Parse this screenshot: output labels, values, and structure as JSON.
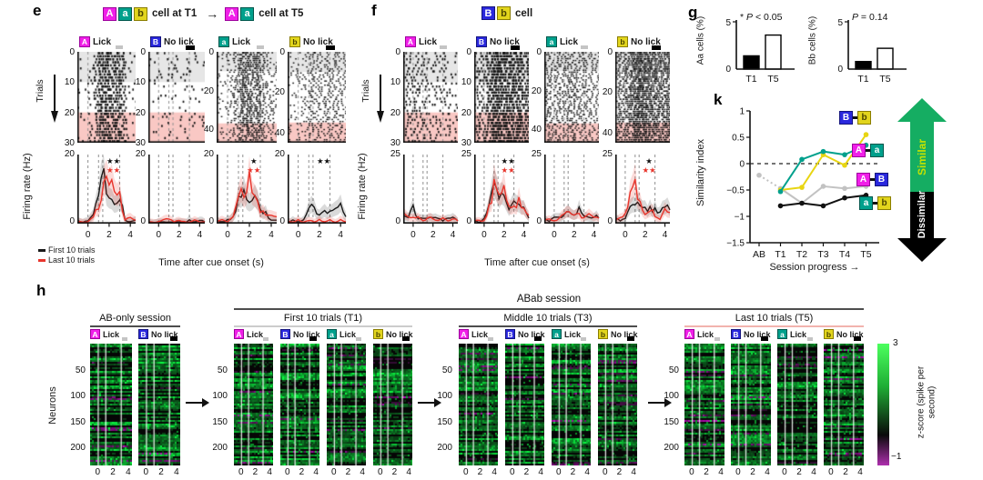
{
  "cue_colors": {
    "A": {
      "bg": "#f020e8",
      "fg": "#ffffff",
      "bd": "#9c009c"
    },
    "B": {
      "bg": "#2a28dd",
      "fg": "#ffffff",
      "bd": "#14147e"
    },
    "a": {
      "bg": "#00a08c",
      "fg": "#ffffff",
      "bd": "#00564b"
    },
    "b": {
      "bg": "#e2d51d",
      "fg": "#4a4400",
      "bd": "#8a7d00"
    }
  },
  "panel_e": {
    "label": "e",
    "title_left_tokens": [
      "A",
      "a",
      "b"
    ],
    "title_left_text": "cell at T1",
    "title_arrow": "→",
    "title_right_tokens": [
      "A",
      "a"
    ],
    "title_right_text": "cell at T5",
    "trials_ylabel": "Trials",
    "rate_ylabel": "Firing rate (Hz)",
    "rate_ymax": 20,
    "rate_ymax_label": "20",
    "rate_ymin_label": "0",
    "band_first": "#e6e6e6",
    "band_last": "#f9c8c4",
    "xticks": [
      "0",
      "2",
      "4"
    ],
    "xlabel": "Time after cue onset (s)",
    "legend": [
      {
        "label": "First 10 trials",
        "color": "#1a1a1a"
      },
      {
        "label": "Last 10 trials",
        "color": "#e8352c"
      }
    ],
    "columns": [
      {
        "cue": "A",
        "type": "Lick",
        "yticks": [
          "0",
          "10",
          "20",
          "30"
        ],
        "rows": 30,
        "stars_black": "★★",
        "stars_red": "★★",
        "raster_profile": [
          0.3,
          0.2,
          0.5,
          1.5,
          3.5,
          4,
          2.5,
          3,
          2,
          0.5,
          0.3
        ],
        "black": [
          1,
          0.5,
          1,
          3,
          9,
          13,
          6,
          7,
          8,
          1,
          0.5,
          1
        ],
        "red": [
          0.5,
          0.5,
          0.5,
          2,
          5,
          10,
          14,
          9,
          8,
          1,
          2,
          1
        ]
      },
      {
        "cue": "B",
        "type": "No lick",
        "yticks": [
          "0",
          "10",
          "20",
          "30"
        ],
        "rows": 30,
        "stars_black": "",
        "stars_red": "",
        "raster_profile": [
          0.3,
          0.3,
          0.3,
          0.3,
          0.3,
          0.3,
          0.3,
          0.3,
          0.3,
          0.3,
          0.3
        ],
        "black": [
          0.5,
          0.3,
          0.5,
          0.5,
          0.5,
          0.3,
          0.5,
          0.5,
          1,
          0.5,
          1,
          0.5
        ],
        "red": [
          0.5,
          0.5,
          0.5,
          1,
          1.5,
          0.5,
          1,
          0.5,
          0.5,
          1,
          0.5,
          0.5
        ]
      },
      {
        "cue": "a",
        "type": "Lick",
        "yticks": [
          "0",
          "20",
          "40"
        ],
        "rows": 47,
        "stars_black": "★",
        "stars_red": "★★",
        "raster_profile": [
          0.5,
          0.4,
          0.8,
          1.5,
          3,
          3,
          2.5,
          3,
          1.5,
          1,
          0.8
        ],
        "black": [
          1,
          0.5,
          1,
          2,
          7,
          8,
          5,
          7,
          4,
          3,
          1,
          1
        ],
        "red": [
          0.5,
          1,
          0.5,
          2,
          10,
          9,
          13,
          7,
          4,
          2,
          3,
          2
        ]
      },
      {
        "cue": "b",
        "type": "No lick",
        "yticks": [
          "0",
          "20",
          "40"
        ],
        "rows": 45,
        "stars_black": "★★",
        "stars_red": "",
        "raster_profile": [
          0.5,
          0.5,
          0.5,
          0.8,
          1.5,
          1.2,
          1,
          1.2,
          1,
          1.2,
          1
        ],
        "black": [
          0.5,
          1,
          0.5,
          1,
          4,
          5,
          2,
          4,
          3,
          4,
          5,
          2
        ],
        "red": [
          0.5,
          0.5,
          1,
          0.5,
          1,
          0.5,
          1,
          0.5,
          1,
          0.5,
          1,
          0.5
        ]
      }
    ]
  },
  "panel_f": {
    "label": "f",
    "title_tokens": [
      "B",
      "b"
    ],
    "title_text": "cell",
    "trials_ylabel": "Trials",
    "rate_ylabel": "Firing rate (Hz)",
    "rate_ymax": 25,
    "rate_ymax_label": "25",
    "rate_ymin_label": "0",
    "band_first": "#e6e6e6",
    "band_last": "#f9c8c4",
    "xticks": [
      "0",
      "2",
      "4"
    ],
    "xlabel": "Time after cue onset (s)",
    "columns": [
      {
        "cue": "A",
        "type": "Lick",
        "yticks": [
          "0",
          "10",
          "20",
          "30"
        ],
        "rows": 30,
        "stars_black": "",
        "stars_red": "",
        "raster_profile": [
          1,
          0.8,
          1.2,
          0.8,
          0.8,
          0.8,
          0.8,
          0.6,
          0.8,
          0.6,
          0.6
        ],
        "black": [
          3,
          2,
          6,
          2,
          2,
          2,
          2,
          2,
          1,
          2,
          2,
          1
        ],
        "red": [
          4,
          2,
          3,
          2,
          1,
          2,
          2,
          1,
          2,
          1,
          2,
          1
        ]
      },
      {
        "cue": "B",
        "type": "No lick",
        "yticks": [
          "0",
          "10",
          "20",
          "30"
        ],
        "rows": 30,
        "stars_black": "★★",
        "stars_red": "★★",
        "raster_profile": [
          1.5,
          1.2,
          2,
          3.5,
          4.5,
          4,
          4,
          3.5,
          3.5,
          3,
          3
        ],
        "black": [
          1,
          0.5,
          2,
          8,
          12,
          10,
          11,
          6,
          8,
          6,
          7,
          2
        ],
        "red": [
          1,
          1,
          1,
          6,
          13,
          11,
          12,
          8,
          6,
          8,
          7,
          3
        ]
      },
      {
        "cue": "a",
        "type": "Lick",
        "yticks": [
          "0",
          "20",
          "40"
        ],
        "rows": 47,
        "stars_black": "",
        "stars_red": "",
        "raster_profile": [
          1.5,
          1.2,
          1.5,
          1.2,
          1.5,
          1.8,
          1.5,
          1.2,
          1.2,
          1,
          1
        ],
        "black": [
          2,
          1,
          3,
          2,
          3,
          5,
          4,
          5,
          3,
          2,
          3,
          2
        ],
        "red": [
          1,
          2,
          1,
          2,
          3,
          4,
          3,
          3,
          2,
          3,
          2,
          2
        ]
      },
      {
        "cue": "b",
        "type": "No lick",
        "yticks": [
          "0",
          "20",
          "40"
        ],
        "rows": 45,
        "stars_black": "★",
        "stars_red": "★★",
        "raster_profile": [
          2,
          1.8,
          2.5,
          4,
          5,
          4.5,
          4,
          3.5,
          3,
          3,
          3.5
        ],
        "black": [
          2,
          1,
          2,
          5,
          7,
          6,
          5,
          6,
          5,
          4,
          6,
          5
        ],
        "red": [
          1,
          2,
          3,
          10,
          14,
          8,
          4,
          5,
          3,
          2,
          6,
          4
        ]
      }
    ]
  },
  "panel_g": {
    "label": "g",
    "charts": [
      {
        "ylabel": "Aa cells (%)",
        "ymax_label": "5",
        "ymin_label": "0",
        "ann_prefix": "* ",
        "ann_var": "P",
        "ann_rest": " < 0.05",
        "categories": [
          "T1",
          "T5"
        ],
        "values": [
          1.4,
          3.6
        ],
        "ymax": 5,
        "fills": [
          "#000000",
          "#ffffff"
        ]
      },
      {
        "ylabel": "Bb cells (%)",
        "ymax_label": "5",
        "ymin_label": "0",
        "ann_prefix": "",
        "ann_var": "P",
        "ann_rest": " = 0.14",
        "categories": [
          "T1",
          "T5"
        ],
        "values": [
          0.8,
          2.2
        ],
        "ymax": 5,
        "fills": [
          "#000000",
          "#ffffff"
        ]
      }
    ]
  },
  "panel_k": {
    "label": "k",
    "ylabel": "Similarity index",
    "yticks": [
      "1",
      "0.5",
      "0",
      "−0.5",
      "−1",
      "−1.5"
    ],
    "ytick_vals": [
      1,
      0.5,
      0,
      -0.5,
      -1,
      -1.5
    ],
    "categories": [
      "AB",
      "T1",
      "T2",
      "T3",
      "T4",
      "T5"
    ],
    "xlabel": "Session progress →",
    "series": [
      {
        "name": "A-B",
        "color": "#c2c2c2",
        "values": [
          -0.22,
          -0.47,
          -0.75,
          -0.43,
          -0.47,
          -0.43
        ],
        "dotted_first": true
      },
      {
        "name": "A-a",
        "color": "#00a08c",
        "values": [
          null,
          -0.53,
          0.08,
          0.23,
          0.17,
          0.35
        ]
      },
      {
        "name": "B-b",
        "color": "#e8d512",
        "values": [
          null,
          -0.5,
          -0.45,
          0.17,
          -0.03,
          0.55
        ]
      },
      {
        "name": "a-b",
        "color": "#111111",
        "values": [
          null,
          -0.8,
          -0.75,
          -0.8,
          -0.65,
          -0.6
        ]
      }
    ],
    "legend_pairs": [
      [
        "B",
        "b"
      ],
      [
        "A",
        "a"
      ],
      [
        "A",
        "B"
      ],
      [
        "a",
        "b"
      ]
    ],
    "similar_label": "Similar",
    "dissimilar_label": "Dissimilar",
    "similar_arrow": "#15ad62",
    "similar_text": "#c6e300",
    "dissimilar_arrow": "#000000",
    "dissimilar_text": "#ffffff"
  },
  "panel_h": {
    "label": "h",
    "neurons_ylabel": "Neurons",
    "neuron_ticks": [
      "50",
      "100",
      "150",
      "200"
    ],
    "neuron_rows": 235,
    "xticks": [
      "0",
      "2",
      "4"
    ],
    "abab_title": "ABab session",
    "groups": [
      {
        "title": "AB-only session",
        "underline": "#4d4d4d",
        "maps": [
          {
            "cue": "A",
            "type": "Lick"
          },
          {
            "cue": "B",
            "type": "No lick"
          }
        ]
      },
      {
        "title": "First 10 trials (T1)",
        "underline": "#cccccc",
        "maps": [
          {
            "cue": "A",
            "type": "Lick"
          },
          {
            "cue": "B",
            "type": "No lick"
          },
          {
            "cue": "a",
            "type": "Lick"
          },
          {
            "cue": "b",
            "type": "No lick"
          }
        ]
      },
      {
        "title": "Middle 10 trials (T3)",
        "underline": "#4d4d4d",
        "maps": [
          {
            "cue": "A",
            "type": "Lick"
          },
          {
            "cue": "B",
            "type": "No lick"
          },
          {
            "cue": "a",
            "type": "Lick"
          },
          {
            "cue": "b",
            "type": "No lick"
          }
        ]
      },
      {
        "title": "Last 10 trials (T5)",
        "underline": "#f2b3ae",
        "maps": [
          {
            "cue": "A",
            "type": "Lick"
          },
          {
            "cue": "B",
            "type": "No lick"
          },
          {
            "cue": "a",
            "type": "Lick"
          },
          {
            "cue": "b",
            "type": "No lick"
          }
        ]
      }
    ],
    "colorbar": {
      "max": "3",
      "min": "−1",
      "label": "z-score (spike per second)",
      "top": "#4cff5e",
      "mid": "#0a0a0a",
      "bottom": "#ad2fad"
    }
  },
  "chart_data": [
    {
      "type": "bar",
      "title": "Aa cells (%)",
      "categories": [
        "T1",
        "T5"
      ],
      "values": [
        1.4,
        3.6
      ],
      "ylim": [
        0,
        5
      ],
      "annotation": "* P < 0.05"
    },
    {
      "type": "bar",
      "title": "Bb cells (%)",
      "categories": [
        "T1",
        "T5"
      ],
      "values": [
        0.8,
        2.2
      ],
      "ylim": [
        0,
        5
      ],
      "annotation": "P = 0.14"
    },
    {
      "type": "line",
      "title": "Similarity index vs session progress",
      "x": [
        "AB",
        "T1",
        "T2",
        "T3",
        "T4",
        "T5"
      ],
      "series": [
        {
          "name": "A-B",
          "values": [
            -0.22,
            -0.47,
            -0.75,
            -0.43,
            -0.47,
            -0.43
          ]
        },
        {
          "name": "A-a",
          "values": [
            null,
            -0.53,
            0.08,
            0.23,
            0.17,
            0.35
          ]
        },
        {
          "name": "B-b",
          "values": [
            null,
            -0.5,
            -0.45,
            0.17,
            -0.03,
            0.55
          ]
        },
        {
          "name": "a-b",
          "values": [
            null,
            -0.8,
            -0.75,
            -0.8,
            -0.65,
            -0.6
          ]
        }
      ],
      "ylim": [
        -1.5,
        1
      ],
      "xlabel": "Session progress",
      "ylabel": "Similarity index"
    }
  ]
}
